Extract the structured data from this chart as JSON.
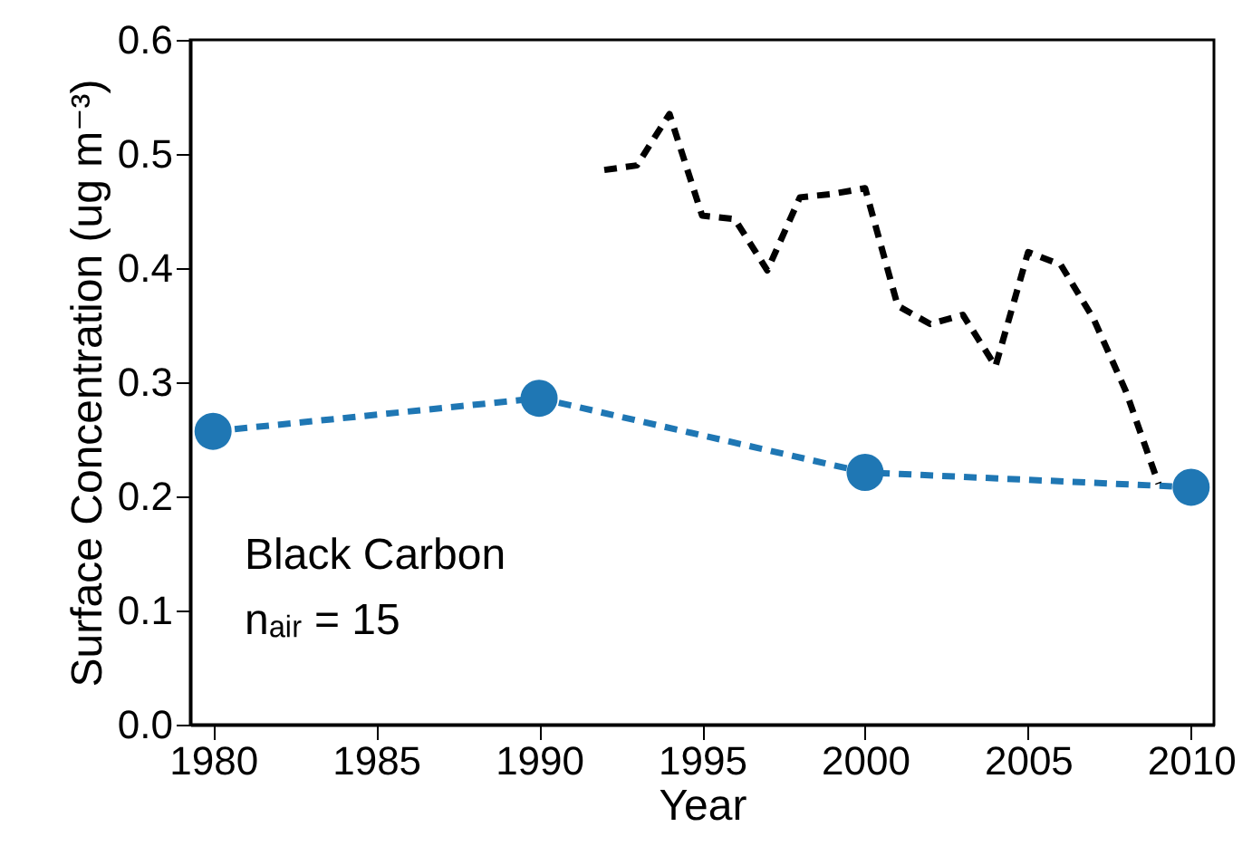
{
  "chart_data": {
    "type": "line",
    "xlabel": "Year",
    "ylabel": "Surface Concentration (ug m⁻³)",
    "annotations": [
      "Black Carbon",
      "nₐᵢᵣ = 15"
    ],
    "xlim": [
      1979.3,
      2010.7
    ],
    "xticks": [
      1980,
      1985,
      1990,
      1995,
      2000,
      2005,
      2010
    ],
    "ylim": [
      0,
      0.6
    ],
    "yticks": [
      {
        "value": 0,
        "label": "0.0"
      },
      0.1,
      0.2,
      0.3,
      0.4,
      0.5,
      0.6
    ],
    "grid": false,
    "line_style": "dashed",
    "series": [
      {
        "color": "#1f77b4",
        "marker": "circle",
        "x": [
          1980,
          1990,
          2000,
          2010
        ],
        "values": [
          0.257,
          0.286,
          0.221,
          0.208
        ]
      },
      {
        "color": "#000000",
        "marker": "none",
        "x": [
          1992,
          1993,
          1994,
          1995,
          1996,
          1997,
          1998,
          1999,
          2000,
          2001,
          2002,
          2003,
          2004,
          2005,
          2006,
          2007,
          2008,
          2009
        ],
        "values": [
          0.486,
          0.49,
          0.535,
          0.446,
          0.443,
          0.398,
          0.462,
          0.465,
          0.47,
          0.367,
          0.351,
          0.359,
          0.314,
          0.414,
          0.403,
          0.356,
          0.292,
          0.211
        ]
      }
    ]
  }
}
